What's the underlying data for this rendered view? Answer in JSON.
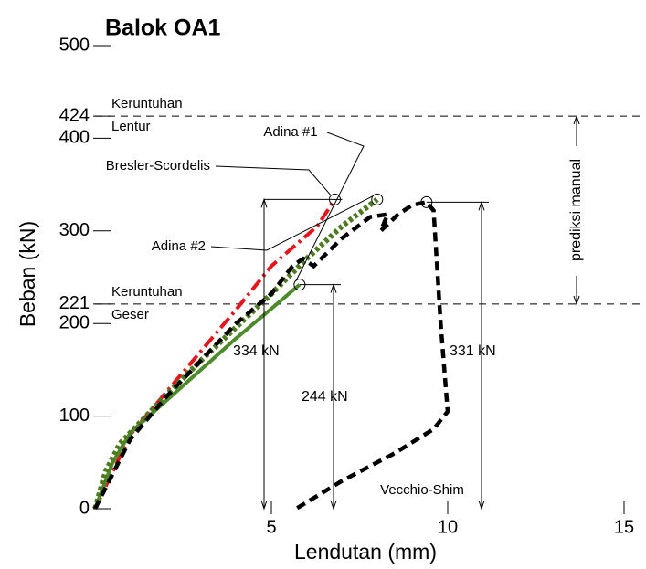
{
  "chart_data": {
    "type": "line",
    "title": "Balok OA1",
    "x_label": "Lendutan (mm)",
    "y_label": "Beban (kN)",
    "xlim": [
      0,
      15
    ],
    "xticks": [
      5,
      10,
      15
    ],
    "ylim": [
      0,
      500
    ],
    "yticks": [
      0,
      100,
      200,
      221,
      300,
      400,
      424,
      500
    ],
    "series": [
      {
        "name": "Bresler-Scordelis",
        "color": "#e8141c",
        "style": "dashdot",
        "x": [
          0,
          1,
          2,
          3,
          4,
          5,
          6.3,
          6.8
        ],
        "values": [
          0,
          80,
          125,
          170,
          215,
          262,
          305,
          334
        ]
      },
      {
        "name": "Adina #1",
        "color": "#4c8a2a",
        "style": "solid",
        "x": [
          0,
          0.5,
          1,
          2,
          3,
          4,
          5,
          5.8
        ],
        "values": [
          0,
          50,
          82,
          116,
          150,
          184,
          216,
          242
        ]
      },
      {
        "name": "Adina #2",
        "color": "#4e7a1e",
        "style": "dotted",
        "x": [
          0,
          0.3,
          0.7,
          1.2,
          2,
          3,
          4,
          5,
          6,
          7,
          8
        ],
        "values": [
          0,
          40,
          70,
          90,
          122,
          160,
          196,
          232,
          270,
          305,
          334
        ]
      },
      {
        "name": "Vecchio-Shim",
        "color": "#000000",
        "style": "dashed",
        "x": [
          0,
          1,
          2,
          3,
          4,
          5,
          5.6,
          5.9,
          6.2,
          7,
          7.8,
          8.3,
          8.1,
          8.6,
          9.0,
          9.4,
          9.6,
          9.8,
          10.0,
          9.6,
          8.5,
          7,
          5.7
        ],
        "values": [
          0,
          75,
          120,
          160,
          200,
          232,
          262,
          270,
          262,
          292,
          315,
          318,
          300,
          318,
          328,
          331,
          322,
          200,
          105,
          86,
          60,
          30,
          0
        ]
      }
    ],
    "reference_lines": [
      {
        "value": 424,
        "label": [
          "Keruntuhan",
          "Lentur"
        ]
      },
      {
        "value": 221,
        "label": [
          "Keruntuhan",
          "Geser"
        ]
      }
    ],
    "annotations": [
      "334 kN",
      "244 kN",
      "331 kN",
      "prediksi manual"
    ]
  }
}
